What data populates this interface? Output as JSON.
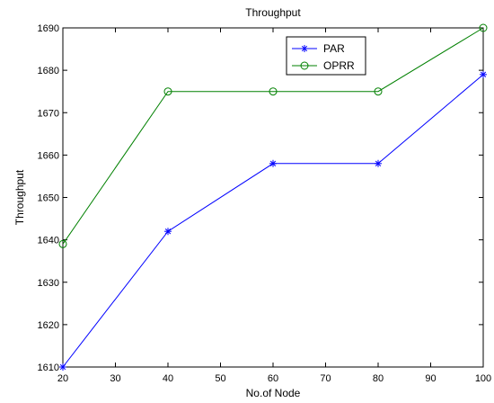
{
  "chart_data": {
    "type": "line",
    "title": "Throughput",
    "xlabel": "No.of Node",
    "ylabel": "Throughput",
    "xlim": [
      20,
      100
    ],
    "ylim": [
      1610,
      1690
    ],
    "xticks": [
      20,
      30,
      40,
      50,
      60,
      70,
      80,
      90,
      100
    ],
    "yticks": [
      1610,
      1620,
      1630,
      1640,
      1650,
      1660,
      1670,
      1680,
      1690
    ],
    "grid": false,
    "legend_position": "top-right",
    "series": [
      {
        "name": "PAR",
        "color": "#0000ff",
        "marker": "asterisk",
        "x": [
          20,
          40,
          60,
          80,
          100
        ],
        "y": [
          1610,
          1642,
          1658,
          1658,
          1679
        ]
      },
      {
        "name": "OPRR",
        "color": "#008000",
        "marker": "circle",
        "x": [
          20,
          40,
          60,
          80,
          100
        ],
        "y": [
          1639,
          1675,
          1675,
          1675,
          1690
        ]
      }
    ]
  }
}
